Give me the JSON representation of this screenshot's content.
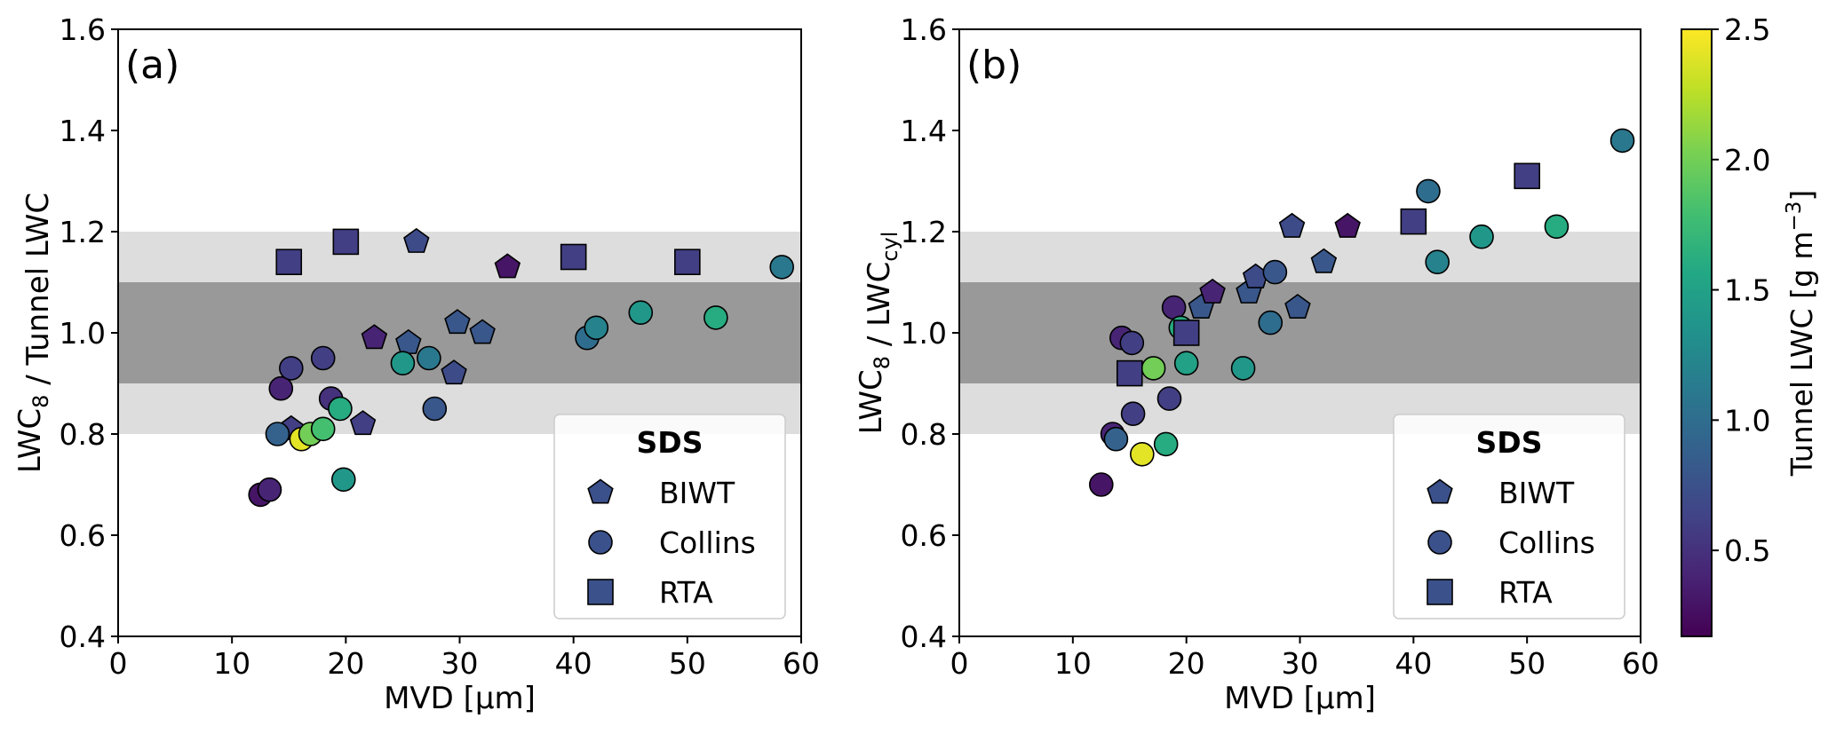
{
  "chart_data": [
    {
      "type": "scatter",
      "panel_label": "(a)",
      "xlabel": "MVD [µm]",
      "ylabel_parts": [
        {
          "text": "LWC",
          "sub": "8"
        },
        {
          "text": " / Tunnel LWC",
          "sub": ""
        }
      ],
      "xlim": [
        0,
        60
      ],
      "ylim": [
        0.4,
        1.6
      ],
      "xticks": [
        "0",
        "10",
        "20",
        "30",
        "40",
        "50",
        "60"
      ],
      "xtick_values": [
        0,
        10,
        20,
        30,
        40,
        50,
        60
      ],
      "yticks": [
        "0.4",
        "0.6",
        "0.8",
        "1.0",
        "1.2",
        "1.4",
        "1.6"
      ],
      "ytick_values": [
        0.4,
        0.6,
        0.8,
        1.0,
        1.2,
        1.4,
        1.6
      ],
      "bands": [
        {
          "y": [
            0.8,
            1.2
          ],
          "color": "#dddddd"
        },
        {
          "y": [
            0.9,
            1.1
          ],
          "color": "#999999"
        }
      ],
      "series": [
        {
          "name": "BIWT",
          "marker": "pentagon",
          "points": [
            {
              "x": 15.2,
              "y": 0.81,
              "c": 0.6
            },
            {
              "x": 21.5,
              "y": 0.82,
              "c": 0.6
            },
            {
              "x": 25.5,
              "y": 0.98,
              "c": 0.8
            },
            {
              "x": 26.2,
              "y": 1.18,
              "c": 0.7
            },
            {
              "x": 29.5,
              "y": 0.92,
              "c": 0.7
            },
            {
              "x": 29.8,
              "y": 1.02,
              "c": 0.8
            },
            {
              "x": 32.0,
              "y": 1.0,
              "c": 0.8
            },
            {
              "x": 22.5,
              "y": 0.99,
              "c": 0.4
            },
            {
              "x": 34.2,
              "y": 1.13,
              "c": 0.3
            }
          ]
        },
        {
          "name": "Collins",
          "marker": "circle",
          "points": [
            {
              "x": 12.5,
              "y": 0.68,
              "c": 0.3
            },
            {
              "x": 13.3,
              "y": 0.69,
              "c": 0.4
            },
            {
              "x": 14.0,
              "y": 0.8,
              "c": 0.9
            },
            {
              "x": 14.3,
              "y": 0.89,
              "c": 0.4
            },
            {
              "x": 15.2,
              "y": 0.93,
              "c": 0.6
            },
            {
              "x": 16.1,
              "y": 0.79,
              "c": 2.4
            },
            {
              "x": 16.9,
              "y": 0.8,
              "c": 2.0
            },
            {
              "x": 18.0,
              "y": 0.81,
              "c": 1.8
            },
            {
              "x": 18.0,
              "y": 0.95,
              "c": 0.6
            },
            {
              "x": 18.7,
              "y": 0.87,
              "c": 0.5
            },
            {
              "x": 19.5,
              "y": 0.85,
              "c": 1.6
            },
            {
              "x": 19.8,
              "y": 0.71,
              "c": 1.4
            },
            {
              "x": 25.0,
              "y": 0.94,
              "c": 1.4
            },
            {
              "x": 27.3,
              "y": 0.95,
              "c": 1.1
            },
            {
              "x": 27.8,
              "y": 0.85,
              "c": 0.8
            },
            {
              "x": 41.2,
              "y": 0.99,
              "c": 1.0
            },
            {
              "x": 42.0,
              "y": 1.01,
              "c": 1.2
            },
            {
              "x": 45.9,
              "y": 1.04,
              "c": 1.4
            },
            {
              "x": 52.5,
              "y": 1.03,
              "c": 1.6
            },
            {
              "x": 58.3,
              "y": 1.13,
              "c": 1.1
            }
          ]
        },
        {
          "name": "RTA",
          "marker": "square",
          "points": [
            {
              "x": 15.0,
              "y": 1.14,
              "c": 0.6
            },
            {
              "x": 20.0,
              "y": 1.18,
              "c": 0.6
            },
            {
              "x": 40.0,
              "y": 1.15,
              "c": 0.6
            },
            {
              "x": 50.0,
              "y": 1.14,
              "c": 0.6
            }
          ]
        }
      ],
      "legend": {
        "title": "SDS",
        "location": "lower right",
        "entries": [
          "BIWT",
          "Collins",
          "RTA"
        ]
      }
    },
    {
      "type": "scatter",
      "panel_label": "(b)",
      "xlabel": "MVD [µm]",
      "ylabel_parts": [
        {
          "text": "LWC",
          "sub": "8"
        },
        {
          "text": " / LWC",
          "sub": "cyl"
        }
      ],
      "xlim": [
        0,
        60
      ],
      "ylim": [
        0.4,
        1.6
      ],
      "xticks": [
        "0",
        "10",
        "20",
        "30",
        "40",
        "50",
        "60"
      ],
      "xtick_values": [
        0,
        10,
        20,
        30,
        40,
        50,
        60
      ],
      "yticks": [
        "0.4",
        "0.6",
        "0.8",
        "1.0",
        "1.2",
        "1.4",
        "1.6"
      ],
      "ytick_values": [
        0.4,
        0.6,
        0.8,
        1.0,
        1.2,
        1.4,
        1.6
      ],
      "bands": [
        {
          "y": [
            0.8,
            1.2
          ],
          "color": "#dddddd"
        },
        {
          "y": [
            0.9,
            1.1
          ],
          "color": "#999999"
        }
      ],
      "series": [
        {
          "name": "BIWT",
          "marker": "pentagon",
          "points": [
            {
              "x": 21.3,
              "y": 1.05,
              "c": 0.8
            },
            {
              "x": 22.3,
              "y": 1.08,
              "c": 0.4
            },
            {
              "x": 25.5,
              "y": 1.08,
              "c": 0.8
            },
            {
              "x": 26.1,
              "y": 1.11,
              "c": 0.7
            },
            {
              "x": 29.3,
              "y": 1.21,
              "c": 0.7
            },
            {
              "x": 29.8,
              "y": 1.05,
              "c": 0.8
            },
            {
              "x": 32.1,
              "y": 1.14,
              "c": 0.8
            },
            {
              "x": 34.2,
              "y": 1.21,
              "c": 0.3
            }
          ]
        },
        {
          "name": "Collins",
          "marker": "circle",
          "points": [
            {
              "x": 12.5,
              "y": 0.7,
              "c": 0.3
            },
            {
              "x": 13.5,
              "y": 0.8,
              "c": 0.4
            },
            {
              "x": 13.8,
              "y": 0.79,
              "c": 0.9
            },
            {
              "x": 14.3,
              "y": 0.99,
              "c": 0.4
            },
            {
              "x": 15.2,
              "y": 0.98,
              "c": 0.6
            },
            {
              "x": 15.3,
              "y": 0.84,
              "c": 0.6
            },
            {
              "x": 16.1,
              "y": 0.76,
              "c": 2.4
            },
            {
              "x": 17.1,
              "y": 0.93,
              "c": 2.0
            },
            {
              "x": 18.2,
              "y": 0.78,
              "c": 1.6
            },
            {
              "x": 18.5,
              "y": 0.87,
              "c": 0.6
            },
            {
              "x": 18.9,
              "y": 1.05,
              "c": 0.4
            },
            {
              "x": 19.5,
              "y": 1.01,
              "c": 1.6
            },
            {
              "x": 20.0,
              "y": 0.94,
              "c": 1.5
            },
            {
              "x": 25.0,
              "y": 0.93,
              "c": 1.4
            },
            {
              "x": 27.4,
              "y": 1.02,
              "c": 1.0
            },
            {
              "x": 27.8,
              "y": 1.12,
              "c": 0.8
            },
            {
              "x": 41.3,
              "y": 1.28,
              "c": 1.0
            },
            {
              "x": 42.1,
              "y": 1.14,
              "c": 1.2
            },
            {
              "x": 46.0,
              "y": 1.19,
              "c": 1.4
            },
            {
              "x": 52.6,
              "y": 1.21,
              "c": 1.6
            },
            {
              "x": 58.4,
              "y": 1.38,
              "c": 1.1
            }
          ]
        },
        {
          "name": "RTA",
          "marker": "square",
          "points": [
            {
              "x": 15.0,
              "y": 0.92,
              "c": 0.6
            },
            {
              "x": 20.0,
              "y": 1.0,
              "c": 0.6
            },
            {
              "x": 40.0,
              "y": 1.22,
              "c": 0.6
            },
            {
              "x": 50.0,
              "y": 1.31,
              "c": 0.6
            }
          ]
        }
      ],
      "legend": {
        "title": "SDS",
        "location": "lower right",
        "entries": [
          "BIWT",
          "Collins",
          "RTA"
        ]
      }
    }
  ],
  "colorbar": {
    "label_main": "Tunnel LWC [g m",
    "label_sup": "−3",
    "label_end": "]",
    "colormap": "viridis",
    "range": [
      0.17,
      2.5
    ],
    "ticks": [
      "0.5",
      "1.0",
      "1.5",
      "2.0",
      "2.5"
    ],
    "tick_values": [
      0.5,
      1.0,
      1.5,
      2.0,
      2.5
    ]
  },
  "legend_marker_color": "#3b518b"
}
